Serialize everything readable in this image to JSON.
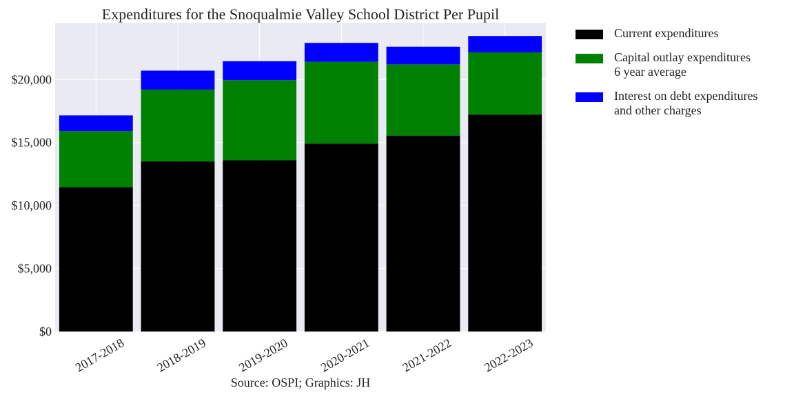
{
  "chart_data": {
    "type": "bar",
    "stacked": true,
    "title": "Expenditures for the Snoqualmie Valley School District Per Pupil",
    "xlabel": "Source: OSPI; Graphics: JH",
    "ylabel": "",
    "categories": [
      "2017-2018",
      "2018-2019",
      "2019-2020",
      "2020-2021",
      "2021-2022",
      "2022-2023"
    ],
    "series": [
      {
        "name": "Current expenditures",
        "color": "#000000",
        "values": [
          11450,
          13500,
          13600,
          14900,
          15550,
          17200
        ]
      },
      {
        "name": "Capital outlay expenditures\n6 year average",
        "color": "#008000",
        "values": [
          4450,
          5700,
          6350,
          6500,
          5650,
          4950
        ]
      },
      {
        "name": "Interest on debt expenditures\nand other charges",
        "color": "#0000ff",
        "values": [
          1250,
          1500,
          1500,
          1500,
          1400,
          1300
        ]
      }
    ],
    "ylim": [
      0,
      24500
    ],
    "yticks": [
      0,
      5000,
      10000,
      15000,
      20000
    ],
    "ytick_labels": [
      "$0",
      "$5,000",
      "$10,000",
      "$15,000",
      "$20,000"
    ],
    "grid": true,
    "legend_position": "outside-right"
  },
  "colors": {
    "plot_background": "#eaeaf2",
    "grid": "#ffffff"
  }
}
